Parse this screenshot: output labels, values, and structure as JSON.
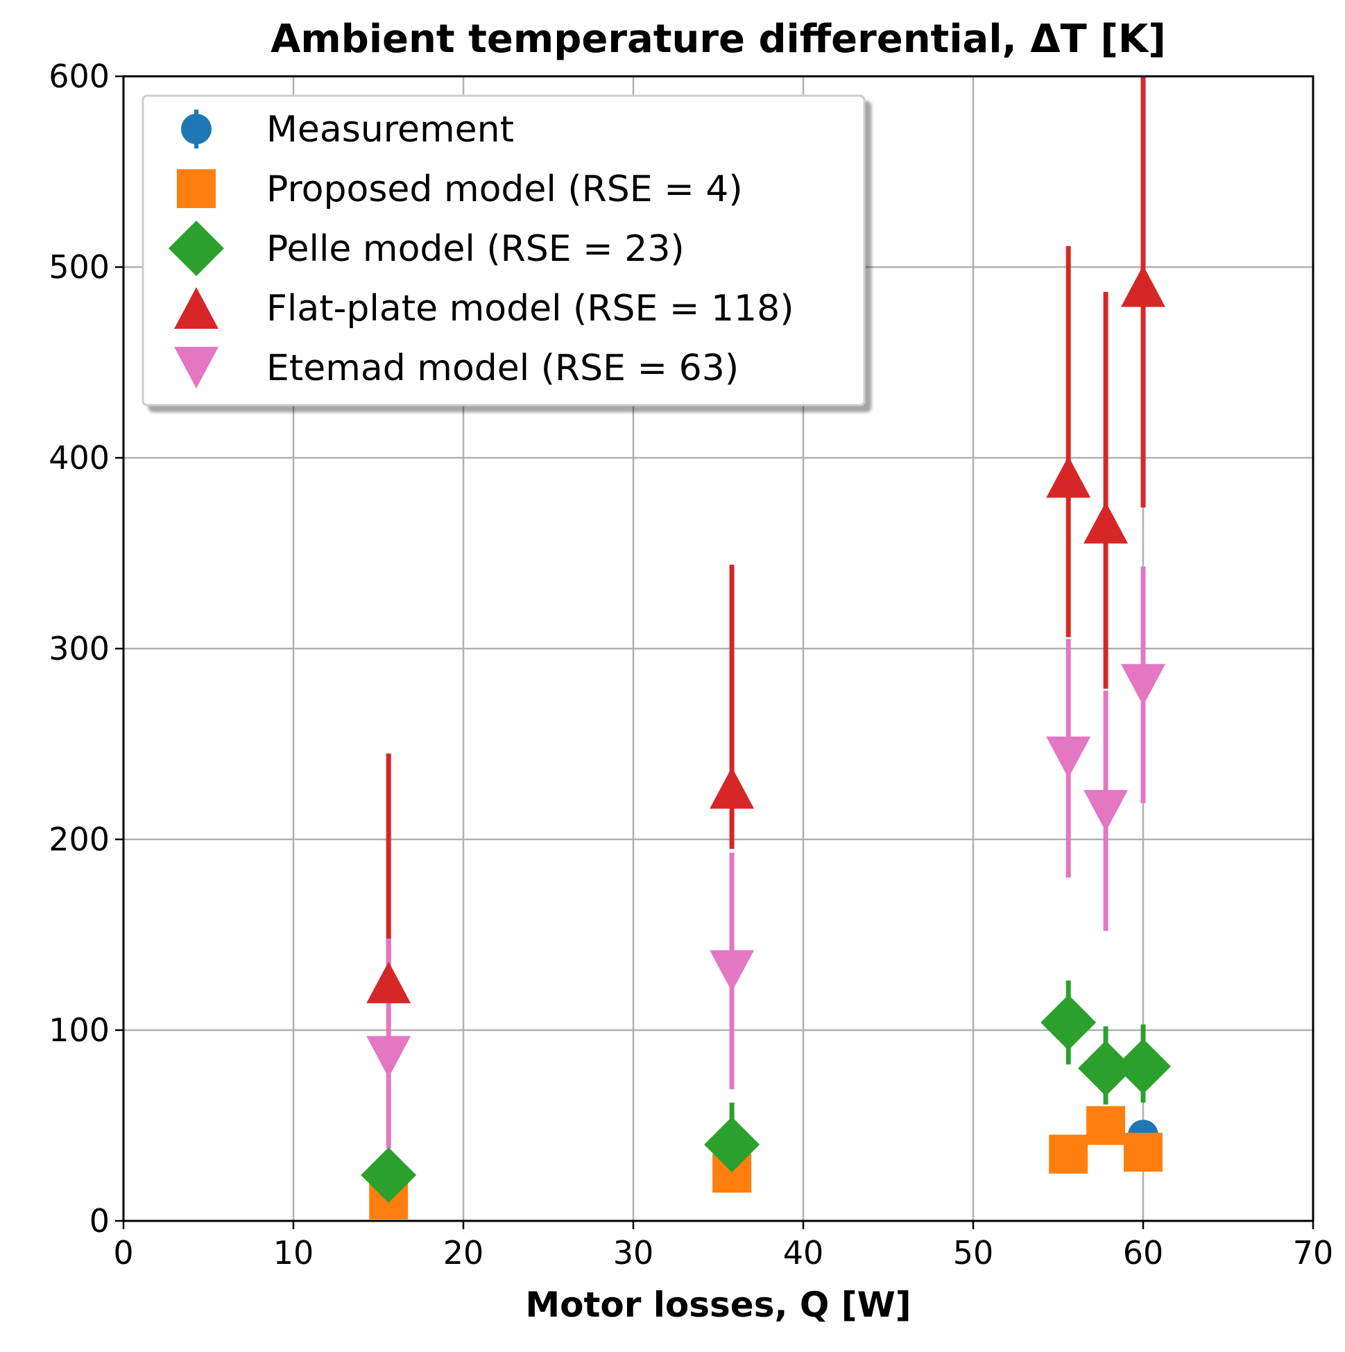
{
  "chart_data": {
    "type": "scatter",
    "title": "Ambient temperature differential, ΔT [K]",
    "xlabel": "Motor losses, Q [W]",
    "ylabel": "",
    "xlim": [
      0,
      70
    ],
    "ylim": [
      0,
      600
    ],
    "xticks": [
      0,
      10,
      20,
      30,
      40,
      50,
      60,
      70
    ],
    "yticks": [
      0,
      100,
      200,
      300,
      400,
      500,
      600
    ],
    "grid": true,
    "legend_position": "top-left",
    "series": [
      {
        "name": "Measurement",
        "marker": "circle",
        "color": "#1f77b4",
        "points": [
          {
            "x": 15.6,
            "y": 14,
            "err_low": 4,
            "err_high": 4
          },
          {
            "x": 35.8,
            "y": 32,
            "err_low": 4,
            "err_high": 4
          },
          {
            "x": 55.6,
            "y": 35,
            "err_low": 4,
            "err_high": 4
          },
          {
            "x": 57.8,
            "y": 49,
            "err_low": 4,
            "err_high": 4
          },
          {
            "x": 60.0,
            "y": 45,
            "err_low": 4,
            "err_high": 4
          }
        ]
      },
      {
        "name": "Proposed model (RSE = 4)",
        "marker": "square",
        "color": "#ff7f0e",
        "points": [
          {
            "x": 15.6,
            "y": 11,
            "err_low": 0,
            "err_high": 0
          },
          {
            "x": 35.8,
            "y": 25,
            "err_low": 0,
            "err_high": 0
          },
          {
            "x": 55.6,
            "y": 35,
            "err_low": 0,
            "err_high": 0
          },
          {
            "x": 57.8,
            "y": 50,
            "err_low": 0,
            "err_high": 0
          },
          {
            "x": 60.0,
            "y": 36,
            "err_low": 0,
            "err_high": 0
          }
        ]
      },
      {
        "name": "Pelle model (RSE = 23)",
        "marker": "diamond",
        "color": "#2ca02c",
        "points": [
          {
            "x": 15.6,
            "y": 24,
            "err_low": 0,
            "err_high": 0
          },
          {
            "x": 35.8,
            "y": 40,
            "err_low": 0,
            "err_high": 22
          },
          {
            "x": 55.6,
            "y": 104,
            "err_low": 22,
            "err_high": 22
          },
          {
            "x": 57.8,
            "y": 80,
            "err_low": 19,
            "err_high": 22
          },
          {
            "x": 60.0,
            "y": 81,
            "err_low": 19,
            "err_high": 22
          }
        ]
      },
      {
        "name": "Flat-plate model (RSE = 118)",
        "marker": "triangle-up",
        "color": "#d62728",
        "points": [
          {
            "x": 15.6,
            "y": 125,
            "err_low": 0,
            "err_high": 120
          },
          {
            "x": 35.8,
            "y": 227,
            "err_low": 32,
            "err_high": 117
          },
          {
            "x": 55.6,
            "y": 390,
            "err_low": 84,
            "err_high": 121
          },
          {
            "x": 57.8,
            "y": 366,
            "err_low": 87,
            "err_high": 121
          },
          {
            "x": 60.0,
            "y": 490,
            "err_low": 116,
            "err_high": 110
          }
        ]
      },
      {
        "name": "Etemad model (RSE = 63)",
        "marker": "triangle-down",
        "color": "#e377c2",
        "points": [
          {
            "x": 15.6,
            "y": 86,
            "err_low": 48,
            "err_high": 62
          },
          {
            "x": 35.8,
            "y": 131,
            "err_low": 62,
            "err_high": 62
          },
          {
            "x": 55.6,
            "y": 243,
            "err_low": 63,
            "err_high": 62
          },
          {
            "x": 57.8,
            "y": 215,
            "err_low": 63,
            "err_high": 63
          },
          {
            "x": 60.0,
            "y": 281,
            "err_low": 62,
            "err_high": 62
          }
        ]
      }
    ]
  }
}
